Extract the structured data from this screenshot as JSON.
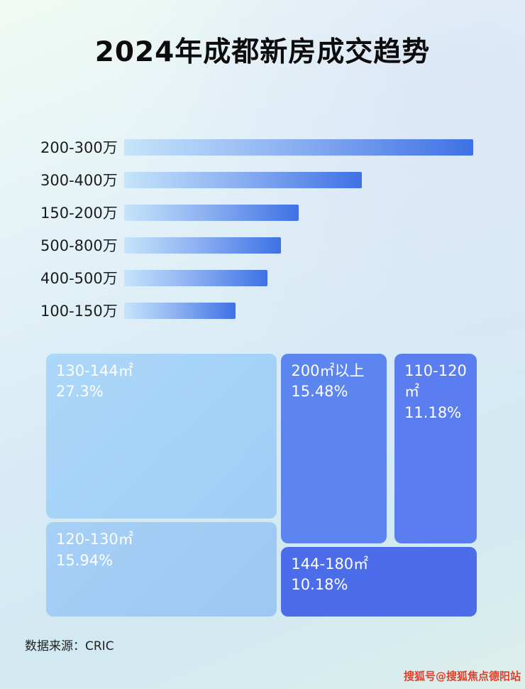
{
  "page": {
    "title": "2024年成都新房成交趋势",
    "source": "数据来源：CRIC",
    "watermark": "搜狐号@搜狐焦点德阳站"
  },
  "colors": {
    "bar_gradient_start": "#c6e4fa",
    "bar_gradient_end": "#3e71e5",
    "treemap_light_blue": "#a6d3f7",
    "treemap_medium_blue": "#5c85f0",
    "treemap_dark_blue": "#4c6de9",
    "watermark_red": "#e2402c"
  },
  "chart_data": [
    {
      "type": "bar",
      "orientation": "horizontal",
      "title": "2024年成都新房成交趋势",
      "categories": [
        "200-300万",
        "300-400万",
        "150-200万",
        "500-800万",
        "400-500万",
        "100-150万"
      ],
      "values": [
        100,
        68,
        50,
        45,
        41,
        32
      ],
      "value_unit": "relative bar length (% of longest bar, no axis labels shown)",
      "xlabel": "",
      "ylabel": "",
      "grid": false,
      "legend": false
    },
    {
      "type": "heatmap",
      "subtype": "treemap",
      "title": "",
      "items": [
        {
          "label": "130-144㎡",
          "value": 27.3,
          "percent_label": "27.3%"
        },
        {
          "label": "200㎡以上",
          "value": 15.48,
          "percent_label": "15.48%"
        },
        {
          "label": "110-120㎡",
          "value": 11.18,
          "percent_label": "11.18%"
        },
        {
          "label": "120-130㎡",
          "value": 15.94,
          "percent_label": "15.94%"
        },
        {
          "label": "144-180㎡",
          "value": 10.18,
          "percent_label": "10.18%"
        }
      ]
    }
  ]
}
